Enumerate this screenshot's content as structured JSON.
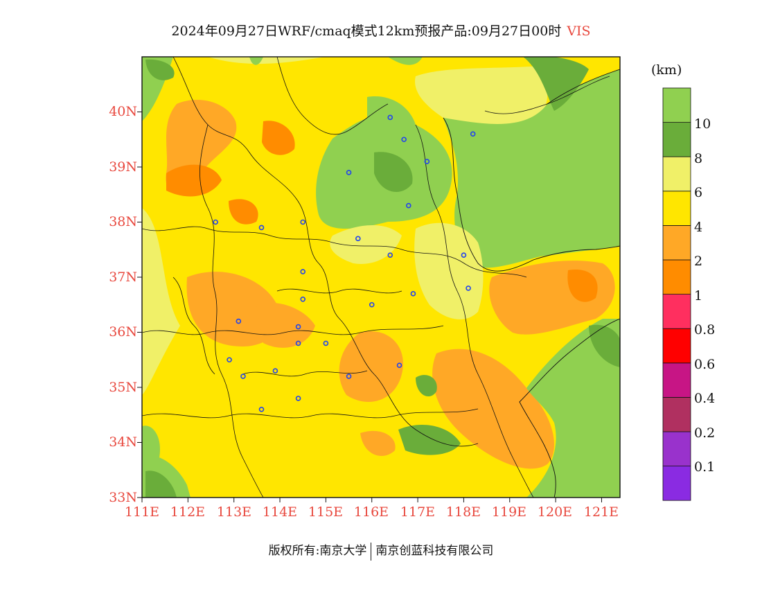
{
  "title": {
    "main": "2024年09月27日WRF/cmaq模式12km预报产品:09月27日00时",
    "variable": "VIS"
  },
  "map": {
    "lon_range": [
      111,
      121.4
    ],
    "lat_range": [
      33,
      41
    ],
    "lat_ticks": [
      "33N",
      "34N",
      "35N",
      "36N",
      "37N",
      "38N",
      "39N",
      "40N"
    ],
    "lon_ticks": [
      "111E",
      "112E",
      "113E",
      "114E",
      "115E",
      "116E",
      "117E",
      "118E",
      "119E",
      "120E",
      "121E"
    ],
    "station_markers": [
      [
        116.4,
        39.9
      ],
      [
        117.2,
        39.1
      ],
      [
        118.2,
        39.6
      ],
      [
        116.7,
        39.5
      ],
      [
        115.5,
        38.9
      ],
      [
        116.8,
        38.3
      ],
      [
        114.5,
        38.0
      ],
      [
        112.6,
        38.0
      ],
      [
        113.6,
        37.9
      ],
      [
        115.7,
        37.7
      ],
      [
        116.4,
        37.4
      ],
      [
        118.0,
        37.4
      ],
      [
        114.5,
        37.1
      ],
      [
        118.1,
        36.8
      ],
      [
        116.9,
        36.7
      ],
      [
        114.5,
        36.6
      ],
      [
        116.0,
        36.5
      ],
      [
        113.1,
        36.2
      ],
      [
        114.4,
        36.1
      ],
      [
        115.0,
        35.8
      ],
      [
        114.4,
        35.8
      ],
      [
        112.9,
        35.5
      ],
      [
        113.2,
        35.2
      ],
      [
        113.9,
        35.3
      ],
      [
        115.5,
        35.2
      ],
      [
        116.6,
        35.4
      ],
      [
        114.4,
        34.8
      ],
      [
        113.6,
        34.6
      ]
    ]
  },
  "colorbar": {
    "unit": "(km)",
    "colors": [
      "#8a2be2",
      "#9932cc",
      "#b03060",
      "#c71585",
      "#ff0000",
      "#ff2f5f",
      "#ff8c00",
      "#ffa826",
      "#ffe600",
      "#f0f068",
      "#6aad3a",
      "#90d050"
    ],
    "labels": [
      "0.1",
      "0.2",
      "0.4",
      "0.6",
      "0.8",
      "1",
      "2",
      "4",
      "6",
      "8",
      "10"
    ]
  },
  "footer": {
    "left": "版权所有:南京大学",
    "right": "南京创蓝科技有限公司"
  }
}
